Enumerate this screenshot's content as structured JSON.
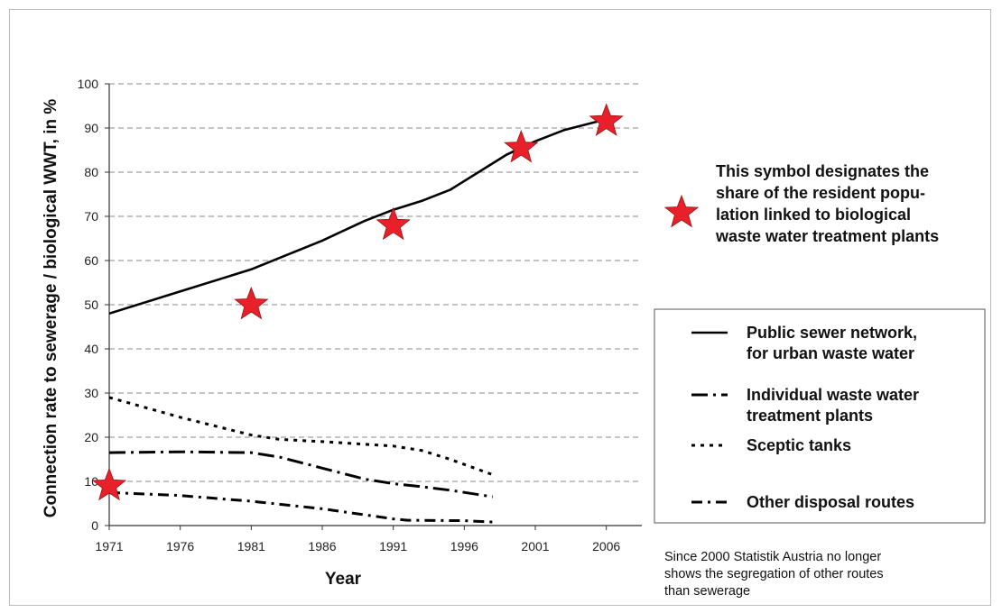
{
  "chart_data": {
    "type": "line",
    "xlabel": "Year",
    "ylabel": "Connection rate to sewerage / biological WWT, in %",
    "xlim": [
      1971,
      2008.5
    ],
    "ylim": [
      0,
      100
    ],
    "x_ticks": [
      1971,
      1976,
      1981,
      1986,
      1991,
      1996,
      2001,
      2006
    ],
    "y_ticks": [
      0,
      10,
      20,
      30,
      40,
      50,
      60,
      70,
      80,
      90,
      100
    ],
    "grid": "horizontal-dashed",
    "legend_position": "right",
    "series": [
      {
        "name": "Public sewer network, for urban waste water",
        "name_lines": [
          "Public sewer network,",
          "for urban waste water"
        ],
        "style": "solid",
        "x": [
          1971,
          1976,
          1981,
          1986,
          1989,
          1991,
          1993,
          1995,
          1997,
          1999,
          2001,
          2003,
          2006
        ],
        "y": [
          48,
          53,
          58,
          64.5,
          69,
          71.5,
          73.5,
          76,
          80,
          84,
          87,
          89.5,
          92
        ]
      },
      {
        "name": "Individual waste water treatment plants",
        "name_lines": [
          "Individual waste water",
          "treatment plants"
        ],
        "style": "longdash-dot",
        "x": [
          1971,
          1976,
          1981,
          1983,
          1986,
          1989,
          1991,
          1993,
          1995,
          1998
        ],
        "y": [
          16.5,
          16.7,
          16.5,
          15.5,
          13,
          10.5,
          9.5,
          8.8,
          8,
          6.5
        ]
      },
      {
        "name": "Sceptic tanks",
        "name_lines": [
          "Sceptic tanks"
        ],
        "style": "dotted",
        "x": [
          1971,
          1976,
          1981,
          1983,
          1986,
          1991,
          1993,
          1995,
          1998
        ],
        "y": [
          29,
          24.5,
          20.5,
          19.5,
          19,
          18,
          17,
          15,
          11.5
        ]
      },
      {
        "name": "Other disposal routes",
        "name_lines": [
          "Other disposal routes"
        ],
        "style": "dash-dot",
        "x": [
          1971,
          1976,
          1981,
          1986,
          1991,
          1992,
          1996,
          1998
        ],
        "y": [
          7.5,
          6.8,
          5.5,
          3.8,
          1.5,
          1.2,
          1.1,
          0.8
        ]
      }
    ],
    "markers": {
      "name": "Share of the resident population linked to biological waste water treatment plants",
      "symbol": "star",
      "color": "#e8202a",
      "x": [
        1971,
        1981,
        1991,
        2000,
        2006
      ],
      "y": [
        9,
        50,
        68,
        85.5,
        91.5
      ]
    },
    "annotations": {
      "star_note_lines": [
        "This symbol designates the",
        "share of  the resident popu-",
        "lation linked to biological",
        "waste water treatment plants"
      ],
      "footnote_lines": [
        "Since 2000 Statistik Austria no longer",
        "shows the segregation of other routes",
        "than sewerage"
      ]
    }
  }
}
